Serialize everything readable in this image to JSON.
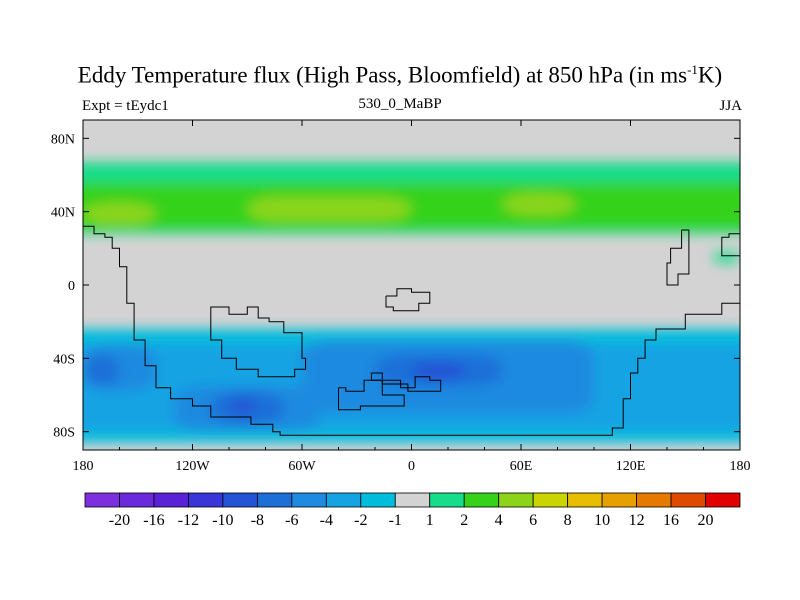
{
  "title": {
    "main": "Eddy Temperature flux (High Pass, Bloomfield) at 850 hPa (in ms",
    "superscript": "-1",
    "tail": "K)"
  },
  "left_string": "Expt = tEydc1",
  "center_string": "530_0_MaBP",
  "right_string": "JJA",
  "colors": {
    "neutral": "#d3d3d3",
    "contour_line": "#000000"
  },
  "chart_data": {
    "type": "heatmap",
    "projection": "cylindrical-equidistant",
    "xlim": [
      -180,
      180
    ],
    "ylim": [
      -90,
      90
    ],
    "x_ticks": [
      {
        "value": -180,
        "label": "180"
      },
      {
        "value": -120,
        "label": "120W"
      },
      {
        "value": -60,
        "label": "60W"
      },
      {
        "value": 0,
        "label": "0"
      },
      {
        "value": 60,
        "label": "60E"
      },
      {
        "value": 120,
        "label": "120E"
      },
      {
        "value": 180,
        "label": "180"
      }
    ],
    "y_ticks": [
      {
        "value": 80,
        "label": "80N"
      },
      {
        "value": 40,
        "label": "40N"
      },
      {
        "value": 0,
        "label": "0"
      },
      {
        "value": -40,
        "label": "40S"
      },
      {
        "value": -80,
        "label": "80S"
      }
    ],
    "colorbar": {
      "labels": [
        "-20",
        "-16",
        "-12",
        "-10",
        "-8",
        "-6",
        "-4",
        "-2",
        "-1",
        "1",
        "2",
        "4",
        "6",
        "8",
        "10",
        "12",
        "16",
        "20"
      ],
      "colors": [
        "#7d2fe0",
        "#6a2adc",
        "#5a22d6",
        "#3a35d8",
        "#2453d6",
        "#1d6fd8",
        "#1e8ae0",
        "#16a3e3",
        "#00bddc",
        "#d3d3d3",
        "#16dd8a",
        "#36d21a",
        "#8cd41a",
        "#cad400",
        "#e6bd00",
        "#e6a100",
        "#e67a00",
        "#e04a00",
        "#e00000"
      ]
    },
    "fields": [
      {
        "level": "1",
        "color": "#16dd8a",
        "lon": [
          -180,
          180
        ],
        "lat": [
          28,
          67
        ]
      },
      {
        "level": "2",
        "color": "#36d21a",
        "lon": [
          -180,
          180
        ],
        "lat": [
          30,
          56
        ]
      },
      {
        "level": "4",
        "color": "#8cd41a",
        "lon": [
          -180,
          -140
        ],
        "lat": [
          33,
          45
        ]
      },
      {
        "level": "4",
        "color": "#8cd41a",
        "lon": [
          -90,
          0
        ],
        "lat": [
          35,
          48
        ]
      },
      {
        "level": "4",
        "color": "#8cd41a",
        "lon": [
          50,
          90
        ],
        "lat": [
          38,
          50
        ]
      },
      {
        "level": "-1",
        "color": "#00bddc",
        "lon": [
          -180,
          180
        ],
        "lat": [
          -86,
          -24
        ]
      },
      {
        "level": "-2",
        "color": "#16a3e3",
        "lon": [
          -180,
          180
        ],
        "lat": [
          -80,
          -32
        ]
      },
      {
        "level": "-4",
        "color": "#1e8ae0",
        "lon": [
          -180,
          -140
        ],
        "lat": [
          -58,
          -32
        ]
      },
      {
        "level": "-4",
        "color": "#1e8ae0",
        "lon": [
          -130,
          -50
        ],
        "lat": [
          -80,
          -55
        ]
      },
      {
        "level": "-4",
        "color": "#1e8ae0",
        "lon": [
          -60,
          100
        ],
        "lat": [
          -70,
          -30
        ]
      },
      {
        "level": "-6",
        "color": "#1d6fd8",
        "lon": [
          -180,
          -160
        ],
        "lat": [
          -55,
          -38
        ]
      },
      {
        "level": "-6",
        "color": "#1d6fd8",
        "lon": [
          -110,
          -70
        ],
        "lat": [
          -76,
          -58
        ]
      },
      {
        "level": "-6",
        "color": "#1d6fd8",
        "lon": [
          -20,
          50
        ],
        "lat": [
          -55,
          -38
        ]
      },
      {
        "level": "-8",
        "color": "#2453d6",
        "lon": [
          -100,
          -85
        ],
        "lat": [
          -70,
          -62
        ]
      },
      {
        "level": "-8",
        "color": "#2453d6",
        "lon": [
          0,
          30
        ],
        "lat": [
          -52,
          -42
        ]
      },
      {
        "level": "1",
        "color": "#16dd8a",
        "lon": [
          165,
          180
        ],
        "lat": [
          12,
          18
        ]
      }
    ]
  }
}
